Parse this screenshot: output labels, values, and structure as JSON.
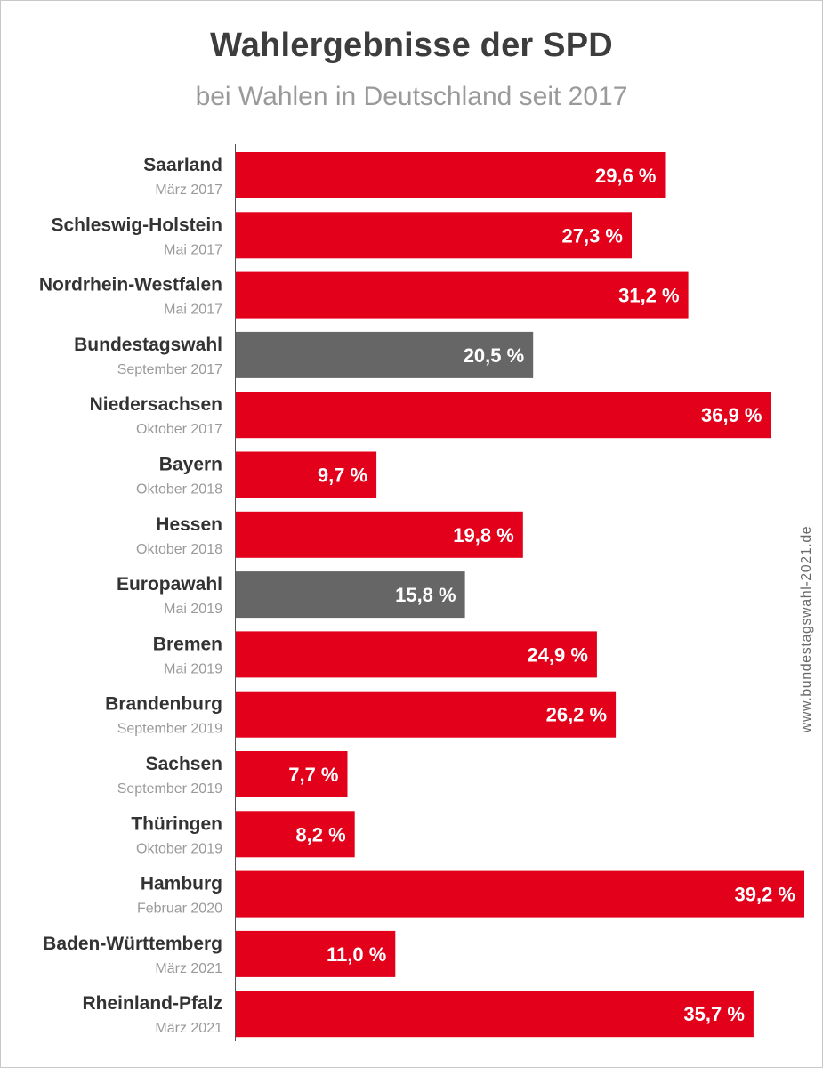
{
  "chart_data": {
    "type": "bar",
    "orientation": "horizontal",
    "title": "Wahlergebnisse der SPD",
    "subtitle": "bei Wahlen in Deutschland seit 2017",
    "watermark": "www.bundestagswahl-2021.de",
    "colors": {
      "state": "#e2001a",
      "federal_eu": "#666666"
    },
    "categories": [
      {
        "name": "Saarland",
        "date": "März 2017",
        "value": 29.6,
        "label": "29,6 %",
        "kind": "state"
      },
      {
        "name": "Schleswig-Holstein",
        "date": "Mai 2017",
        "value": 27.3,
        "label": "27,3 %",
        "kind": "state"
      },
      {
        "name": "Nordrhein-Westfalen",
        "date": "Mai 2017",
        "value": 31.2,
        "label": "31,2 %",
        "kind": "state"
      },
      {
        "name": "Bundestagswahl",
        "date": "September 2017",
        "value": 20.5,
        "label": "20,5 %",
        "kind": "federal_eu"
      },
      {
        "name": "Niedersachsen",
        "date": "Oktober 2017",
        "value": 36.9,
        "label": "36,9 %",
        "kind": "state"
      },
      {
        "name": "Bayern",
        "date": "Oktober 2018",
        "value": 9.7,
        "label": "9,7 %",
        "kind": "state"
      },
      {
        "name": "Hessen",
        "date": "Oktober 2018",
        "value": 19.8,
        "label": "19,8 %",
        "kind": "state"
      },
      {
        "name": "Europawahl",
        "date": "Mai 2019",
        "value": 15.8,
        "label": "15,8 %",
        "kind": "federal_eu"
      },
      {
        "name": "Bremen",
        "date": "Mai 2019",
        "value": 24.9,
        "label": "24,9 %",
        "kind": "state"
      },
      {
        "name": "Brandenburg",
        "date": "September 2019",
        "value": 26.2,
        "label": "26,2 %",
        "kind": "state"
      },
      {
        "name": "Sachsen",
        "date": "September 2019",
        "value": 7.7,
        "label": "7,7 %",
        "kind": "state"
      },
      {
        "name": "Thüringen",
        "date": "Oktober 2019",
        "value": 8.2,
        "label": "8,2 %",
        "kind": "state"
      },
      {
        "name": "Hamburg",
        "date": "Februar 2020",
        "value": 39.2,
        "label": "39,2 %",
        "kind": "state"
      },
      {
        "name": "Baden-Württemberg",
        "date": "März 2021",
        "value": 11.0,
        "label": "11,0 %",
        "kind": "state"
      },
      {
        "name": "Rheinland-Pfalz",
        "date": "März 2021",
        "value": 35.7,
        "label": "35,7 %",
        "kind": "state"
      }
    ],
    "xlim": [
      0,
      39.2
    ],
    "grid": false,
    "legend": "none"
  }
}
